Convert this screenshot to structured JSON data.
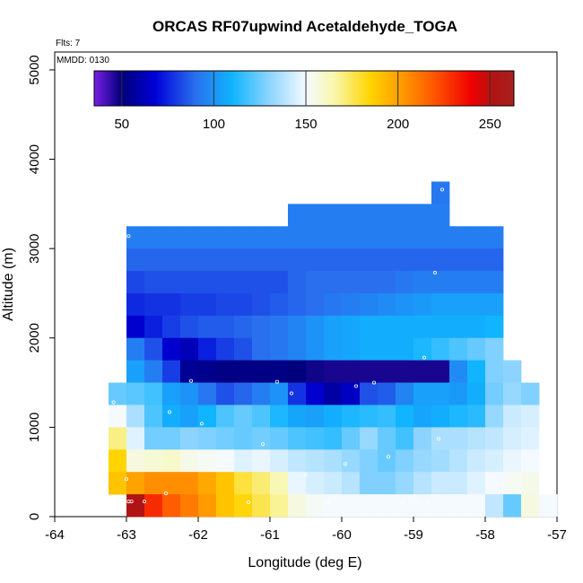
{
  "chart_data": {
    "type": "heatmap",
    "title": "ORCAS RF07upwind Acetaldehyde_TOGA",
    "flights_label": "Flts: 7",
    "date_label": "MMDD: 0130",
    "xlabel": "Longitude (deg E)",
    "ylabel": "Altitude (m)",
    "xlim": [
      -64,
      -57
    ],
    "ylim": [
      0,
      5200
    ],
    "x_ticks": [
      -64,
      -63,
      -62,
      -61,
      -60,
      -59,
      -58,
      -57
    ],
    "x_tick_labels": [
      "-64",
      "-63",
      "-62",
      "-61",
      "-60",
      "-59",
      "-58",
      "-57"
    ],
    "y_ticks": [
      0,
      1000,
      2000,
      3000,
      4000,
      5000
    ],
    "y_tick_labels": [
      "0",
      "1000",
      "2000",
      "3000",
      "4000",
      "5000"
    ],
    "colorbar": {
      "range": [
        35,
        263
      ],
      "ticks": [
        50,
        100,
        150,
        200,
        250
      ],
      "tick_labels": [
        "50",
        "100",
        "150",
        "200",
        "250"
      ],
      "stops": [
        {
          "v": 35,
          "c": "#7a1ee6"
        },
        {
          "v": 50,
          "c": "#00007a"
        },
        {
          "v": 68,
          "c": "#0000d8"
        },
        {
          "v": 90,
          "c": "#2a70ee"
        },
        {
          "v": 110,
          "c": "#10b4ff"
        },
        {
          "v": 130,
          "c": "#8cd4ff"
        },
        {
          "v": 150,
          "c": "#f4faff"
        },
        {
          "v": 165,
          "c": "#f8f8b0"
        },
        {
          "v": 185,
          "c": "#ffd400"
        },
        {
          "v": 200,
          "c": "#ffa200"
        },
        {
          "v": 220,
          "c": "#ff5500"
        },
        {
          "v": 240,
          "c": "#f00000"
        },
        {
          "v": 252,
          "c": "#b01414"
        },
        {
          "v": 263,
          "c": "#a82020"
        }
      ]
    },
    "cell_size": {
      "lon": 0.25,
      "alt": 250
    },
    "rows": [
      {
        "alt": 3500,
        "lon_start": -58.75,
        "values": [
          92
        ]
      },
      {
        "alt": 3250,
        "lon_start": -60.75,
        "values": [
          94,
          94,
          94,
          94,
          94,
          94,
          94,
          94,
          94
        ]
      },
      {
        "alt": 3000,
        "lon_start": -63.0,
        "values": [
          94,
          94,
          94,
          94,
          94,
          94,
          94,
          94,
          94,
          94,
          94,
          94,
          94,
          94,
          94,
          94,
          94,
          94,
          94,
          94,
          94
        ]
      },
      {
        "alt": 2750,
        "lon_start": -63.0,
        "values": [
          88,
          88,
          88,
          88,
          88,
          88,
          88,
          88,
          88,
          88,
          88,
          88,
          88,
          88,
          88,
          88,
          88,
          88,
          88,
          88,
          88
        ]
      },
      {
        "alt": 2500,
        "lon_start": -63.0,
        "values": [
          82,
          84,
          84,
          84,
          84,
          84,
          84,
          84,
          84,
          88,
          90,
          90,
          90,
          90,
          90,
          92,
          94,
          94,
          94,
          94,
          94
        ]
      },
      {
        "alt": 2250,
        "lon_start": -63.0,
        "values": [
          76,
          78,
          78,
          80,
          80,
          82,
          82,
          84,
          86,
          88,
          90,
          92,
          94,
          96,
          98,
          100,
          102,
          104,
          104,
          104,
          104
        ]
      },
      {
        "alt": 2000,
        "lon_start": -63.0,
        "values": [
          66,
          74,
          80,
          84,
          86,
          86,
          88,
          90,
          92,
          96,
          100,
          104,
          106,
          108,
          108,
          108,
          108,
          108,
          108,
          108,
          110
        ]
      },
      {
        "alt": 1750,
        "lon_start": -63.0,
        "values": [
          94,
          84,
          66,
          62,
          74,
          80,
          84,
          90,
          92,
          96,
          100,
          104,
          106,
          108,
          108,
          108,
          112,
          116,
          120,
          124,
          128
        ]
      },
      {
        "alt": 1500,
        "lon_start": -63.0,
        "values": [
          104,
          94,
          80,
          55,
          54,
          52,
          52,
          52,
          52,
          50,
          48,
          47,
          47,
          47,
          47,
          47,
          47,
          47,
          98,
          110,
          128,
          130
        ]
      },
      {
        "alt": 1250,
        "lon_start": -63.25,
        "values": [
          124,
          122,
          118,
          104,
          100,
          92,
          84,
          88,
          94,
          100,
          78,
          66,
          58,
          64,
          84,
          86,
          96,
          104,
          104,
          102,
          108,
          126,
          132,
          128
        ]
      },
      {
        "alt": 1000,
        "lon_start": -63.25,
        "values": [
          150,
          136,
          120,
          108,
          104,
          110,
          120,
          124,
          120,
          112,
          106,
          104,
          108,
          112,
          114,
          116,
          110,
          106,
          108,
          112,
          114,
          132,
          142,
          144
        ]
      },
      {
        "alt": 750,
        "lon_start": -63.25,
        "values": [
          170,
          146,
          126,
          126,
          130,
          128,
          126,
          124,
          126,
          124,
          120,
          118,
          116,
          124,
          132,
          124,
          118,
          130,
          136,
          136,
          138,
          140,
          144,
          146
        ]
      },
      {
        "alt": 500,
        "lon_start": -63.25,
        "values": [
          185,
          156,
          158,
          160,
          154,
          152,
          150,
          146,
          148,
          144,
          140,
          138,
          136,
          132,
          128,
          124,
          128,
          132,
          134,
          138,
          142,
          144,
          148,
          150
        ]
      },
      {
        "alt": 250,
        "lon_start": -63.25,
        "values": [
          190,
          200,
          205,
          205,
          205,
          198,
          190,
          178,
          172,
          164,
          148,
          144,
          142,
          138,
          128,
          128,
          132,
          138,
          142,
          142,
          146,
          150,
          152,
          154
        ]
      },
      {
        "alt": 0,
        "lon_start": -63.0,
        "values": [
          252,
          230,
          218,
          210,
          202,
          190,
          184,
          176,
          168,
          156,
          152,
          150,
          150,
          150,
          150,
          150,
          150,
          150,
          150,
          150,
          140,
          124,
          156,
          150
        ]
      }
    ],
    "sample_points": [
      {
        "lon": -62.97,
        "alt": 3140
      },
      {
        "lon": -63.05,
        "alt": 2200
      },
      {
        "lon": -62.1,
        "alt": 1520
      },
      {
        "lon": -60.9,
        "alt": 1510
      },
      {
        "lon": -60.7,
        "alt": 1380
      },
      {
        "lon": -59.8,
        "alt": 1460
      },
      {
        "lon": -59.55,
        "alt": 1500
      },
      {
        "lon": -58.85,
        "alt": 1780
      },
      {
        "lon": -58.7,
        "alt": 2730
      },
      {
        "lon": -58.6,
        "alt": 3660
      },
      {
        "lon": -63.18,
        "alt": 1280
      },
      {
        "lon": -62.4,
        "alt": 1170
      },
      {
        "lon": -61.95,
        "alt": 1040
      },
      {
        "lon": -61.1,
        "alt": 810
      },
      {
        "lon": -60.5,
        "alt": 470
      },
      {
        "lon": -59.95,
        "alt": 590
      },
      {
        "lon": -59.35,
        "alt": 670
      },
      {
        "lon": -58.65,
        "alt": 870
      },
      {
        "lon": -63.0,
        "alt": 420
      },
      {
        "lon": -62.45,
        "alt": 260
      },
      {
        "lon": -62.97,
        "alt": 170
      },
      {
        "lon": -62.93,
        "alt": 170
      },
      {
        "lon": -62.75,
        "alt": 170
      },
      {
        "lon": -61.3,
        "alt": 160
      },
      {
        "lon": -60.2,
        "alt": 160
      },
      {
        "lon": -59.15,
        "alt": 160
      },
      {
        "lon": -58.95,
        "alt": 160
      },
      {
        "lon": -58.8,
        "alt": 160
      }
    ]
  }
}
